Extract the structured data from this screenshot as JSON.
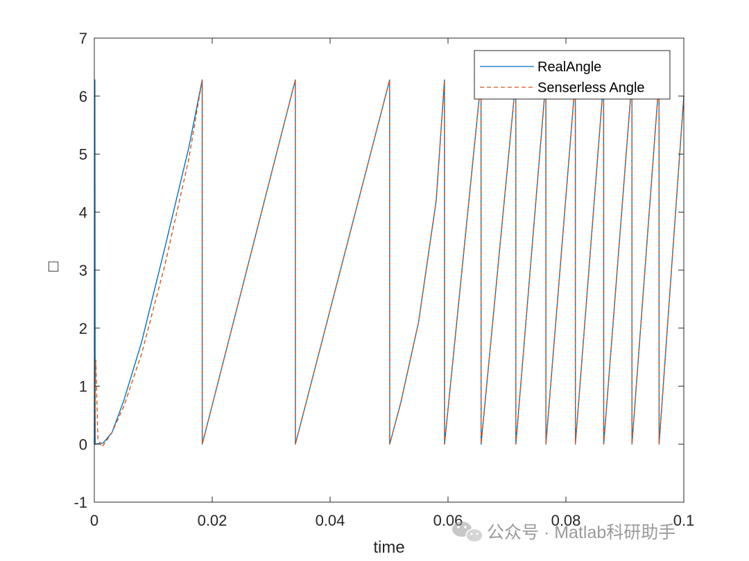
{
  "chart_data": {
    "type": "line",
    "xlabel": "time",
    "ylabel": "□",
    "xlim": [
      0,
      0.1
    ],
    "ylim": [
      -1,
      7
    ],
    "xticks": [
      0,
      0.02,
      0.04,
      0.06,
      0.08,
      0.1
    ],
    "xtick_labels": [
      "0",
      "0.02",
      "0.04",
      "0.06",
      "0.08",
      "0.1"
    ],
    "yticks": [
      -1,
      0,
      1,
      2,
      3,
      4,
      5,
      6,
      7
    ],
    "ytick_labels": [
      "-1",
      "0",
      "1",
      "2",
      "3",
      "4",
      "5",
      "6",
      "7"
    ],
    "grid": false,
    "legend_position": "top-right",
    "series": [
      {
        "name": "RealAngle",
        "color": "#0072BD",
        "style": "solid",
        "points": [
          [
            0,
            0
          ],
          [
            0.0001,
            6.28
          ],
          [
            0.00015,
            0
          ],
          [
            0.0015,
            0.02
          ],
          [
            0.003,
            0.2
          ],
          [
            0.005,
            0.75
          ],
          [
            0.008,
            1.75
          ],
          [
            0.012,
            3.4
          ],
          [
            0.016,
            5.1
          ],
          [
            0.0183,
            6.28
          ],
          [
            0.01831,
            0
          ],
          [
            0.0341,
            6.28
          ],
          [
            0.03411,
            0
          ],
          [
            0.0501,
            6.28
          ],
          [
            0.05011,
            0
          ],
          [
            0.052,
            0.72
          ],
          [
            0.055,
            2.1
          ],
          [
            0.058,
            4.2
          ],
          [
            0.0594,
            6.28
          ],
          [
            0.05941,
            0
          ],
          [
            0.0656,
            6.28
          ],
          [
            0.06561,
            0
          ],
          [
            0.0715,
            6.28
          ],
          [
            0.07151,
            0
          ],
          [
            0.0766,
            6.28
          ],
          [
            0.07661,
            0
          ],
          [
            0.0816,
            6.28
          ],
          [
            0.08161,
            0
          ],
          [
            0.0864,
            6.28
          ],
          [
            0.08641,
            0
          ],
          [
            0.0912,
            6.28
          ],
          [
            0.09121,
            0
          ],
          [
            0.0958,
            6.28
          ],
          [
            0.09581,
            0
          ],
          [
            0.1,
            6.0
          ]
        ]
      },
      {
        "name": "Senserless Angle",
        "color": "#D95319",
        "style": "dashed",
        "points": [
          [
            0,
            0
          ],
          [
            0.00025,
            1.45
          ],
          [
            0.0006,
            0.1
          ],
          [
            0.0013,
            -0.05
          ],
          [
            0.002,
            0.05
          ],
          [
            0.003,
            0.2
          ],
          [
            0.005,
            0.65
          ],
          [
            0.008,
            1.55
          ],
          [
            0.012,
            3.1
          ],
          [
            0.016,
            4.9
          ],
          [
            0.0183,
            6.28
          ],
          [
            0.01831,
            0
          ],
          [
            0.0341,
            6.28
          ],
          [
            0.03411,
            0
          ],
          [
            0.0501,
            6.28
          ],
          [
            0.05011,
            0
          ],
          [
            0.052,
            0.72
          ],
          [
            0.055,
            2.1
          ],
          [
            0.058,
            4.2
          ],
          [
            0.0594,
            6.28
          ],
          [
            0.05941,
            0
          ],
          [
            0.0656,
            6.28
          ],
          [
            0.06561,
            0
          ],
          [
            0.0715,
            6.28
          ],
          [
            0.07151,
            0
          ],
          [
            0.0766,
            6.28
          ],
          [
            0.07661,
            0
          ],
          [
            0.0816,
            6.28
          ],
          [
            0.08161,
            0
          ],
          [
            0.0864,
            6.28
          ],
          [
            0.08641,
            0
          ],
          [
            0.0912,
            6.28
          ],
          [
            0.09121,
            0
          ],
          [
            0.0958,
            6.28
          ],
          [
            0.09581,
            0
          ],
          [
            0.1,
            6.0
          ]
        ]
      }
    ]
  },
  "watermark": {
    "text": "公众号 · Matlab科研助手",
    "icon": "wechat-icon"
  }
}
